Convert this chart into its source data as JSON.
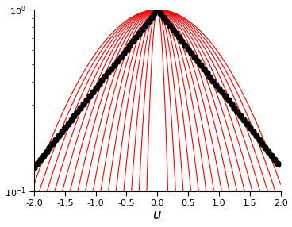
{
  "xlabel": "$u$",
  "xlim": [
    -2.0,
    2.0
  ],
  "ylim_log": [
    0.1,
    1.05
  ],
  "xticks": [
    -2.0,
    -1.5,
    -1.0,
    -0.5,
    0.0,
    0.5,
    1.0,
    1.5,
    2.0
  ],
  "xtick_labels": [
    "-2.0",
    "-1.5",
    "-1.0",
    "-0.5",
    "0.0",
    "0.5",
    "1.0",
    "1.5",
    "2.0"
  ],
  "laplacian_color": "black",
  "laplacian_linestyle": "--",
  "laplacian_linewidth": 2.2,
  "laplacian_marker": "o",
  "laplacian_markersize": 5,
  "laplacian_markevery": 25,
  "gaussian_color": "red",
  "gaussian_linewidth": 0.8,
  "num_gaussians": 16,
  "sigma_min": 0.08,
  "sigma_max": 0.95,
  "background_color": "white",
  "figsize": [
    3.68,
    2.86
  ],
  "dpi": 100
}
